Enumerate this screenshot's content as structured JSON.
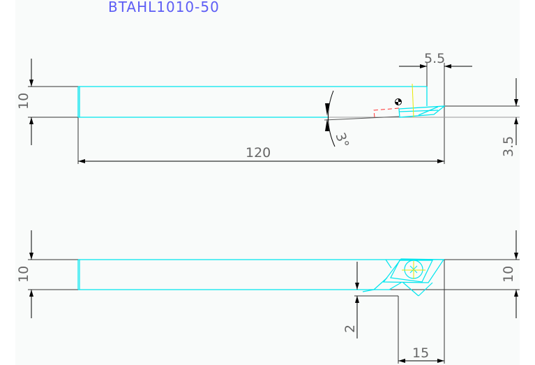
{
  "title": "BTAHL1010-50",
  "colors": {
    "background": "#f9fbfa",
    "outline": "#00e5ee",
    "dimension": "#333333",
    "text": "#666666",
    "title": "#5d5df5",
    "center_mark": "#e8e800",
    "hidden": "#ff3030"
  },
  "top_view": {
    "dims": {
      "height": "10",
      "length": "120",
      "offset": "5.5",
      "tip_height": "3.5",
      "angle": "3°"
    }
  },
  "bottom_view": {
    "dims": {
      "height_left": "10",
      "height_right": "10",
      "step": "2",
      "width": "15"
    }
  }
}
